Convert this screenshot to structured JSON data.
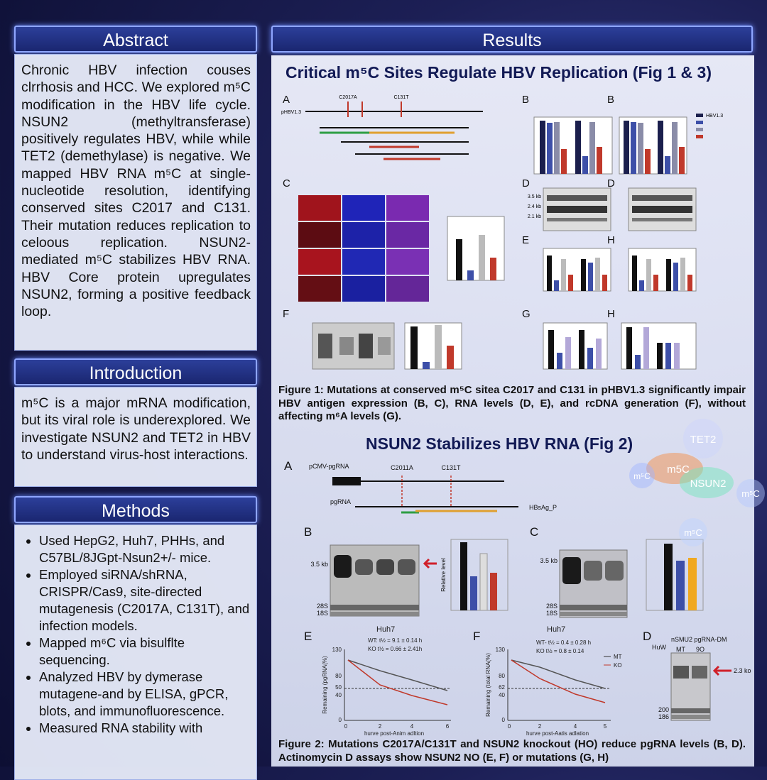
{
  "abstract": {
    "title": "Abstract",
    "text": "Chronic HBV infection couses clrrhosis and HCC. We explored m⁵C modification in the HBV life cycle. NSUN2 (methyltransferase) positively regulates HBV, while while TET2 (demethylase) is negative. We mapped HBV RNA m⁵C at single-nucleotide resolution, identifying conserved sites C2017 and C131. Their mutation reduces replication to celoous replication. NSUN2-mediated m⁵C stabilizes HBV RNA. HBV Core protein upregulates NSUN2, forming a positive feedback loop."
  },
  "introduction": {
    "title": "Introduction",
    "text": "m⁵C is a major mRNA modification, but its viral role is underexplored. We investigate NSUN2 and TET2 in HBV to understand virus-host interactions."
  },
  "methods": {
    "title": "Methods",
    "items": [
      "Used HepG2, Huh7, PHHs, and C57BL/8JGpt-Nsun2+/- mice.",
      "Employed siRNA/shRNA, CRISPR/Cas9, site-directed mutagenesis (C2017A, C131T), and infection models.",
      "Mapped m⁶C via bisulflte sequencing.",
      "Analyzed HBV by dymerase mutagene-and by ELISA, gPCR, blots, and immunofluorescence.",
      "Measured RNA stability with"
    ]
  },
  "results": {
    "title": "Results",
    "figure1": {
      "heading": "Critical m⁵C Sites Regulate HBV Replication (Fig 1 & 3)",
      "panels": [
        "A",
        "B",
        "B",
        "C",
        "D",
        "D",
        "E",
        "H",
        "F",
        "G",
        "H"
      ],
      "labels": [
        "pHBV1.3",
        "HBV1.3",
        "C2017A",
        "C131T",
        "3.5 kb",
        "2.4 kb",
        "2.1 kb"
      ],
      "caption": "Figure 1: Mutations at conserved m⁵C sitea C2017 and C131 in pHBV1.3 significantly impair HBV antigen expression (B, C), RNA levels (D, E), and rcDNA generation (F), without affecting m⁶A levels (G)."
    },
    "figure2": {
      "heading": "NSUN2 Stabilizes HBV RNA (Fig 2)",
      "panels": [
        "A",
        "B",
        "C",
        "E",
        "F",
        "D"
      ],
      "a_labels": [
        "pCMV-pgRNA",
        "C2011A",
        "C131T",
        "pgRNA",
        "HBsAg_P"
      ],
      "b_labels": [
        "3.5 kb",
        "28S",
        "18S",
        "Relative level"
      ],
      "c_labels": [
        "3.5 kb",
        "28S",
        "18S"
      ],
      "e": {
        "title": "Huh7",
        "wt": "WT: t½ = 9.1 ± 0.14 h",
        "ko": "KO t½ = 0.66 ± 2.41h",
        "yticks": [
          "130",
          "80",
          "50",
          "40",
          "0"
        ],
        "xticks": [
          "0",
          "2",
          "4",
          "6"
        ],
        "xlabel": "hurve post-Anim adltion",
        "ylabel": "Remaining (pgRNA(%)"
      },
      "f": {
        "title": "Huh7",
        "wt": "WT- t½ = 0.4 ± 0.28 h",
        "ko": "KO t½ = 0.8 ± 0.14",
        "legend": [
          "MT",
          "KO"
        ],
        "yticks": [
          "130",
          "80",
          "62",
          "40",
          "0"
        ],
        "xticks": [
          "0",
          "2",
          "4",
          "5"
        ],
        "xlabel": "hurve post-Aatis adlation",
        "ylabel": "Remaining (total RNA(%)"
      },
      "d": {
        "cell": "HuW",
        "title": "nSMU2 pgRNA-DM",
        "lanes": [
          "MT",
          "9O"
        ],
        "band": "2.3 ko",
        "markers": [
          "200",
          "186"
        ]
      },
      "caption": "Figure 2: Mutations C2017A/C131T and NSUN2 knockout (HO) reduce pgRNA levels (B, D). Actinomycin D assays show NSUN2 NO (E, F) or mutations (G, H)"
    }
  },
  "decor": [
    "TET2",
    "m5C",
    "NSUN2",
    "m⁵C",
    "m⁵C",
    "m⁵C"
  ]
}
